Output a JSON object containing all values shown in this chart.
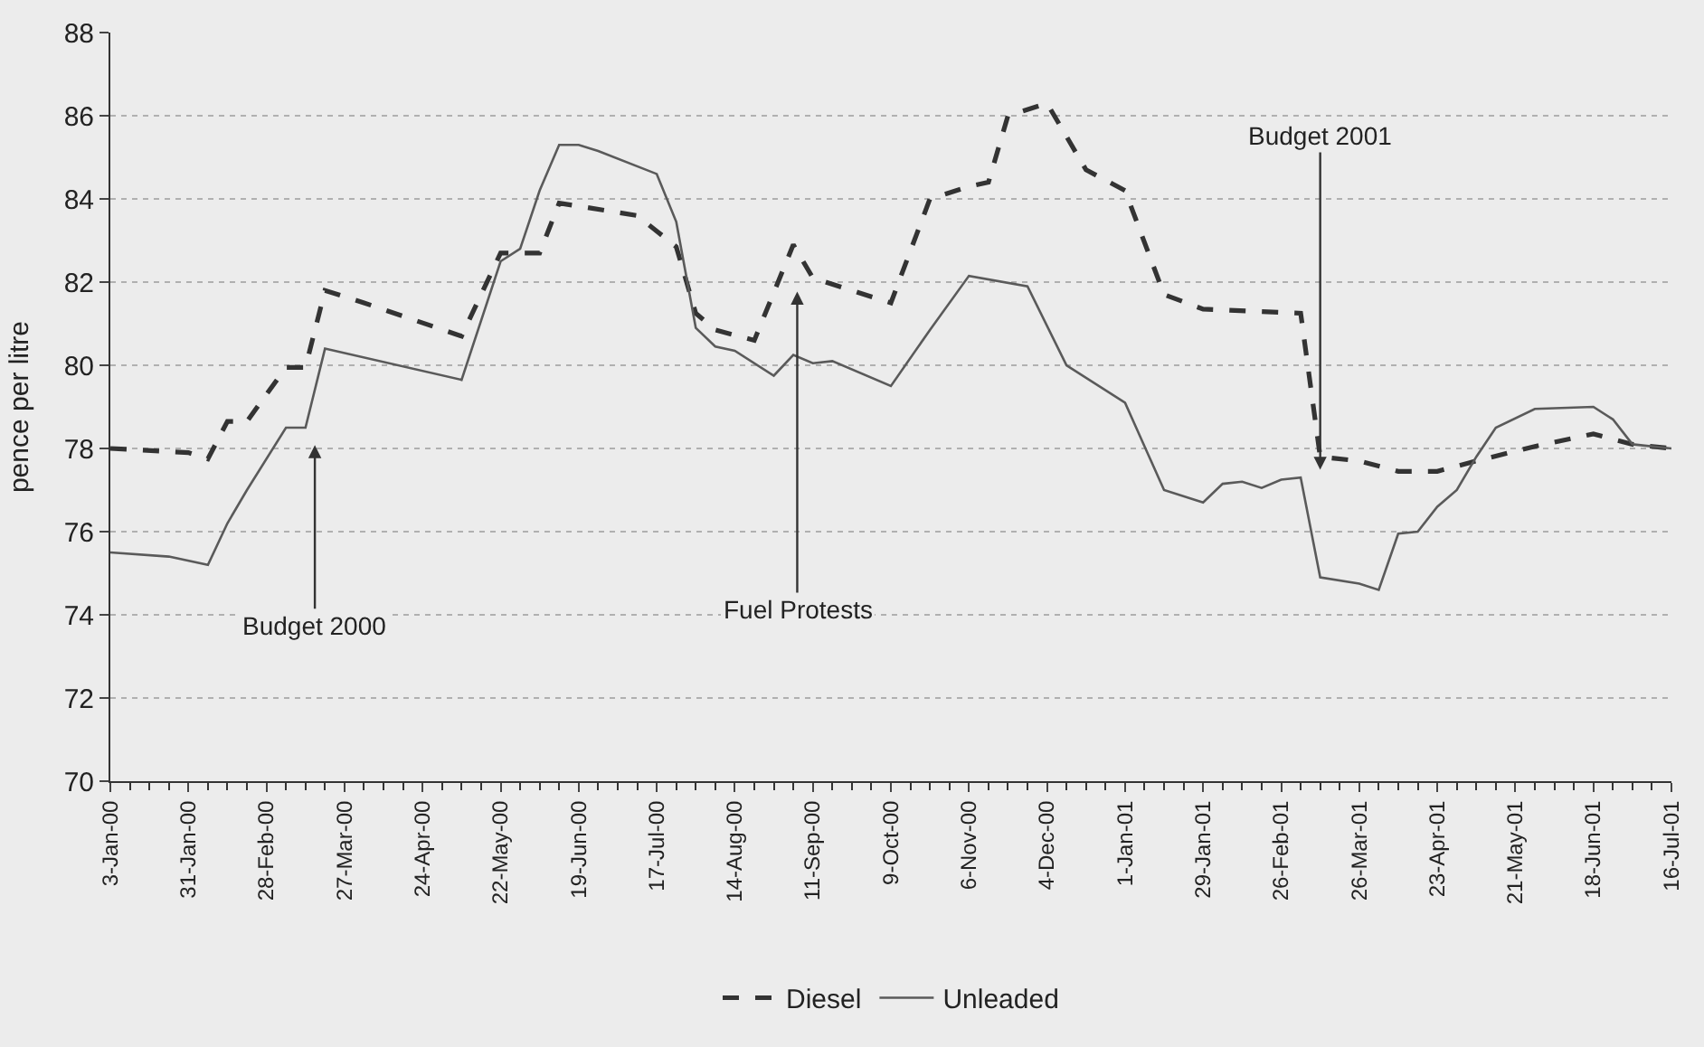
{
  "chart_data": {
    "type": "line",
    "ylabel": "pence per litre",
    "xlim": [
      "2000-01-03",
      "2001-07-16"
    ],
    "ylim": [
      70,
      88
    ],
    "yticks": [
      70,
      72,
      74,
      76,
      78,
      80,
      82,
      84,
      86,
      88
    ],
    "xticks": [
      {
        "value": "2000-01-03",
        "label": "3-Jan-00"
      },
      {
        "value": "2000-01-31",
        "label": "31-Jan-00"
      },
      {
        "value": "2000-02-28",
        "label": "28-Feb-00"
      },
      {
        "value": "2000-03-27",
        "label": "27-Mar-00"
      },
      {
        "value": "2000-04-24",
        "label": "24-Apr-00"
      },
      {
        "value": "2000-05-22",
        "label": "22-May-00"
      },
      {
        "value": "2000-06-19",
        "label": "19-Jun-00"
      },
      {
        "value": "2000-07-17",
        "label": "17-Jul-00"
      },
      {
        "value": "2000-08-14",
        "label": "14-Aug-00"
      },
      {
        "value": "2000-09-11",
        "label": "11-Sep-00"
      },
      {
        "value": "2000-10-09",
        "label": "9-Oct-00"
      },
      {
        "value": "2000-11-06",
        "label": "6-Nov-00"
      },
      {
        "value": "2000-12-04",
        "label": "4-Dec-00"
      },
      {
        "value": "2001-01-01",
        "label": "1-Jan-01"
      },
      {
        "value": "2001-01-29",
        "label": "29-Jan-01"
      },
      {
        "value": "2001-02-26",
        "label": "26-Feb-01"
      },
      {
        "value": "2001-03-26",
        "label": "26-Mar-01"
      },
      {
        "value": "2001-04-23",
        "label": "23-Apr-01"
      },
      {
        "value": "2001-05-21",
        "label": "21-May-01"
      },
      {
        "value": "2001-06-18",
        "label": "18-Jun-01"
      },
      {
        "value": "2001-07-16",
        "label": "16-Jul-01"
      }
    ],
    "grid": "y",
    "legend": "bottom",
    "series": [
      {
        "name": "Diesel",
        "color": "#333333",
        "line_style": "dashed",
        "x": [
          "2000-01-03",
          "2000-01-31",
          "2000-02-07",
          "2000-02-14",
          "2000-02-21",
          "2000-03-06",
          "2000-03-13",
          "2000-03-20",
          "2000-04-03",
          "2000-05-08",
          "2000-05-22",
          "2000-06-05",
          "2000-06-12",
          "2000-07-10",
          "2000-07-24",
          "2000-07-31",
          "2000-08-07",
          "2000-08-21",
          "2000-09-04",
          "2000-09-11",
          "2000-10-09",
          "2000-10-23",
          "2000-11-06",
          "2000-11-13",
          "2000-11-20",
          "2000-12-04",
          "2000-12-18",
          "2001-01-01",
          "2001-01-15",
          "2001-01-29",
          "2001-03-05",
          "2001-03-12",
          "2001-03-26",
          "2001-04-09",
          "2001-04-23",
          "2001-05-07",
          "2001-05-28",
          "2001-06-18",
          "2001-07-02",
          "2001-07-16"
        ],
        "values": [
          78.0,
          77.9,
          77.75,
          78.65,
          78.65,
          79.95,
          79.95,
          81.8,
          81.5,
          80.7,
          82.7,
          82.7,
          83.9,
          83.6,
          82.85,
          81.25,
          80.85,
          80.6,
          82.9,
          82.1,
          81.5,
          84.0,
          84.3,
          84.4,
          86.0,
          86.3,
          84.7,
          84.2,
          81.7,
          81.35,
          81.25,
          77.8,
          77.7,
          77.45,
          77.45,
          77.7,
          78.05,
          78.35,
          78.1,
          78.0
        ]
      },
      {
        "name": "Unleaded",
        "color": "#5a5a5a",
        "line_style": "solid",
        "x": [
          "2000-01-03",
          "2000-01-24",
          "2000-02-07",
          "2000-02-14",
          "2000-02-21",
          "2000-03-06",
          "2000-03-13",
          "2000-03-20",
          "2000-05-08",
          "2000-05-22",
          "2000-05-29",
          "2000-06-05",
          "2000-06-12",
          "2000-06-19",
          "2000-06-26",
          "2000-07-17",
          "2000-07-24",
          "2000-07-31",
          "2000-08-07",
          "2000-08-14",
          "2000-08-28",
          "2000-09-04",
          "2000-09-11",
          "2000-09-18",
          "2000-10-09",
          "2000-10-23",
          "2000-11-06",
          "2000-11-27",
          "2000-12-11",
          "2001-01-01",
          "2001-01-15",
          "2001-01-29",
          "2001-02-05",
          "2001-02-12",
          "2001-02-19",
          "2001-02-26",
          "2001-03-05",
          "2001-03-12",
          "2001-03-26",
          "2001-04-02",
          "2001-04-09",
          "2001-04-16",
          "2001-04-23",
          "2001-04-30",
          "2001-05-07",
          "2001-05-14",
          "2001-05-28",
          "2001-06-18",
          "2001-06-25",
          "2001-07-02",
          "2001-07-16"
        ],
        "values": [
          75.5,
          75.4,
          75.2,
          76.2,
          77.0,
          78.5,
          78.5,
          80.4,
          79.65,
          82.5,
          82.8,
          84.2,
          85.3,
          85.3,
          85.15,
          84.6,
          83.45,
          80.9,
          80.45,
          80.35,
          79.75,
          80.25,
          80.05,
          80.1,
          79.5,
          80.85,
          82.15,
          81.9,
          80.0,
          79.1,
          77.0,
          76.7,
          77.15,
          77.2,
          77.05,
          77.25,
          77.3,
          74.9,
          74.75,
          74.6,
          75.95,
          76.0,
          76.6,
          77.0,
          77.8,
          78.5,
          78.95,
          79.0,
          78.7,
          78.1,
          78.0
        ]
      }
    ],
    "annotations": [
      "Budget 2000",
      "Fuel Protests",
      "Budget 2001"
    ]
  }
}
